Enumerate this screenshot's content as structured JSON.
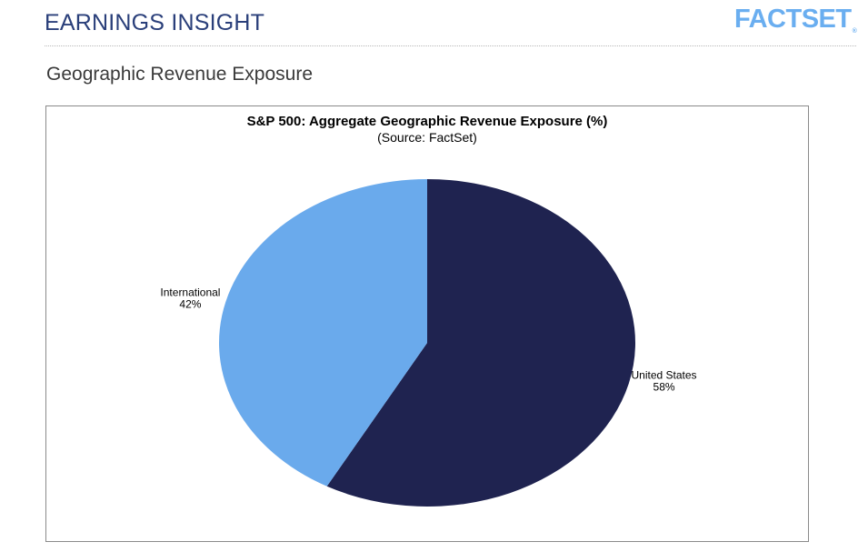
{
  "header": {
    "title": "EARNINGS INSIGHT",
    "logo_text": "FACTSET",
    "logo_mark": "®"
  },
  "section": {
    "title": "Geographic Revenue Exposure"
  },
  "colors": {
    "header_title": "#2a3f7a",
    "logo": "#6aaef0",
    "united_states": "#1f2350",
    "international": "#6aaaec"
  },
  "chart_data": {
    "type": "pie",
    "title": "S&P 500: Aggregate Geographic Revenue Exposure (%)",
    "subtitle": "(Source: FactSet)",
    "categories": [
      "United States",
      "International"
    ],
    "values": [
      58,
      42
    ],
    "labels": [
      {
        "name": "United States",
        "value_label": "58%"
      },
      {
        "name": "International",
        "value_label": "42%"
      }
    ]
  }
}
